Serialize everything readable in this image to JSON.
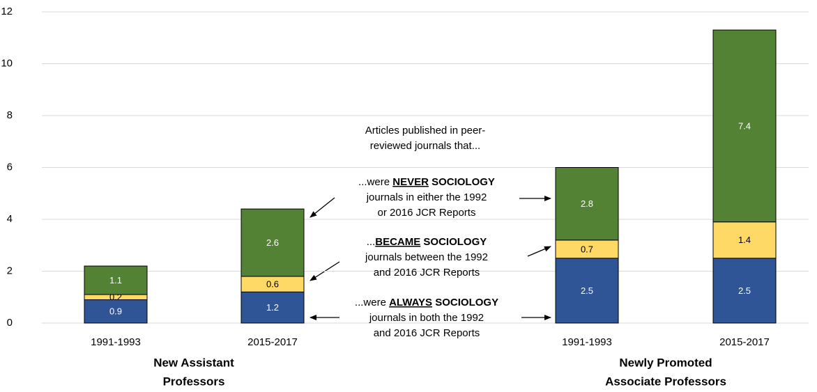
{
  "chart_data": {
    "type": "stacked_bar",
    "categories": [
      "1991-1993",
      "2015-2017",
      "1991-1993",
      "2015-2017"
    ],
    "groups": [
      {
        "lines": [
          "New Assistant",
          "Professors"
        ]
      },
      {
        "lines": [
          "Newly Promoted",
          "Associate Professors"
        ]
      }
    ],
    "series": [
      {
        "color": "#2f5597",
        "label_color": "#ffffff",
        "values": [
          0.9,
          1.2,
          2.5,
          2.5
        ],
        "label_lines": [
          [
            {
              "text": "...were ",
              "style": "normal"
            },
            {
              "text": "ALWAYS",
              "style": "bold-underline"
            },
            {
              "text": " SOCIOLOGY",
              "style": "bold"
            }
          ],
          [
            {
              "text": "journals in both the 1992",
              "style": "normal"
            }
          ],
          [
            {
              "text": "and 2016 JCR Reports",
              "style": "normal"
            }
          ]
        ]
      },
      {
        "color": "#ffd966",
        "label_color": "#000000",
        "values": [
          0.2,
          0.6,
          0.7,
          1.4
        ],
        "label_lines": [
          [
            {
              "text": "...",
              "style": "normal"
            },
            {
              "text": "BECAME",
              "style": "bold-underline"
            },
            {
              "text": " SOCIOLOGY",
              "style": "bold"
            }
          ],
          [
            {
              "text": "journals between the 1992",
              "style": "normal"
            }
          ],
          [
            {
              "text": "and 2016 JCR Reports",
              "style": "normal"
            }
          ]
        ]
      },
      {
        "color": "#548235",
        "label_color": "#ffffff",
        "values": [
          1.1,
          2.6,
          2.8,
          7.4
        ],
        "label_lines": [
          [
            {
              "text": "...were ",
              "style": "normal"
            },
            {
              "text": "NEVER",
              "style": "bold-underline"
            },
            {
              "text": " SOCIOLOGY",
              "style": "bold"
            }
          ],
          [
            {
              "text": "journals in either the 1992",
              "style": "normal"
            }
          ],
          [
            {
              "text": "or 2016 JCR Reports",
              "style": "normal"
            }
          ]
        ]
      }
    ],
    "heading": [
      "Articles published in peer-",
      "reviewed journals that..."
    ],
    "ylim": [
      0,
      12
    ],
    "yticks": [
      0,
      2,
      4,
      6,
      8,
      10,
      12
    ],
    "grid": true
  }
}
